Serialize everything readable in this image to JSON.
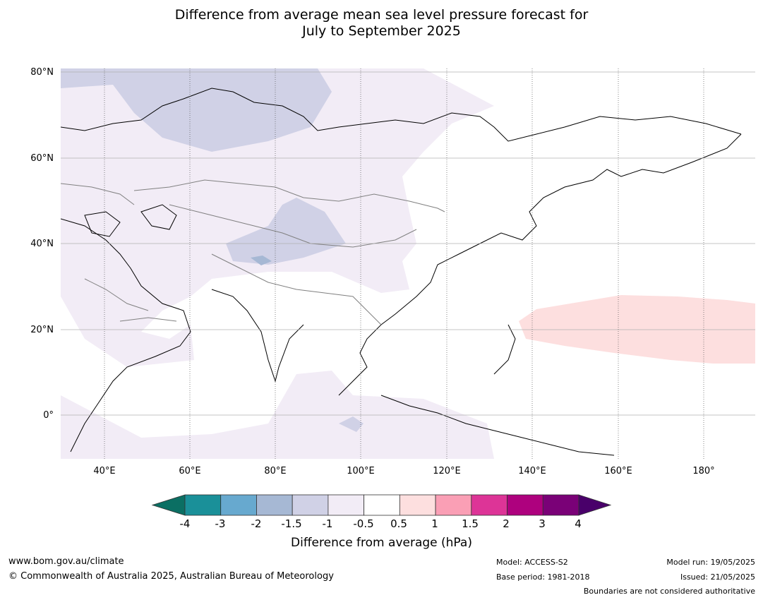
{
  "title": {
    "line1": "Difference from average mean sea level pressure forecast for",
    "line2": "July to September 2025"
  },
  "map": {
    "lat_ticks": [
      "80°N",
      "60°N",
      "40°N",
      "20°N",
      "0°"
    ],
    "lon_ticks": [
      "40°E",
      "60°E",
      "80°E",
      "100°E",
      "120°E",
      "140°E",
      "160°E",
      "180°"
    ],
    "colors": {
      "land_outline": "#000000",
      "borders": "#808080",
      "grid": "#b0b0b0",
      "ocean": "#ffffff"
    }
  },
  "colorbar": {
    "title": "Difference from average (hPa)",
    "tick_labels": [
      "-4",
      "-3",
      "-2",
      "-1.5",
      "-1",
      "-0.5",
      "0.5",
      "1",
      "1.5",
      "2",
      "3",
      "4"
    ],
    "colors": [
      "#0b6f63",
      "#1a9099",
      "#67a9cf",
      "#a6b8d4",
      "#d0d1e6",
      "#f2ecf6",
      "#ffffff",
      "#fddfdf",
      "#fa9fb5",
      "#dd3497",
      "#ae017e",
      "#7a0177",
      "#49006a"
    ]
  },
  "footer": {
    "website": "www.bom.gov.au/climate",
    "copyright": "© Commonwealth of Australia 2025, Australian Bureau of Meteorology",
    "model": "Model: ACCESS-S2",
    "base_period": "Base period: 1981-2018",
    "model_run": "Model run: 19/05/2025",
    "issued": "Issued: 21/05/2025",
    "disclaimer": "Boundaries are not considered authoritative"
  }
}
